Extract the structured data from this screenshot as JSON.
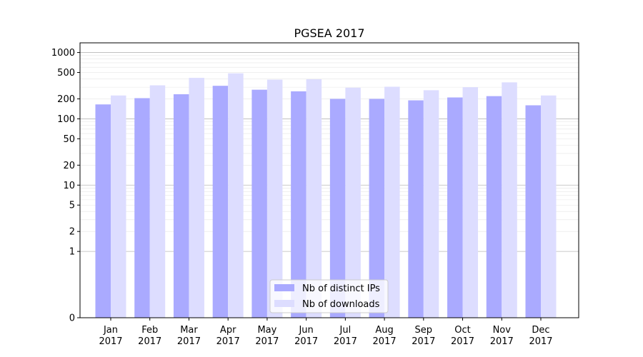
{
  "chart_data": {
    "type": "bar",
    "title": "PGSEA 2017",
    "xlabel": "",
    "ylabel": "",
    "yscale": "symlog",
    "ylim": [
      0,
      1400
    ],
    "yticks": [
      0,
      1,
      2,
      5,
      10,
      20,
      50,
      100,
      200,
      500,
      1000
    ],
    "ytick_labels": [
      "0",
      "1",
      "2",
      "5",
      "10",
      "20",
      "50",
      "100",
      "200",
      "500",
      "1000"
    ],
    "categories": [
      "Jan\n2017",
      "Feb\n2017",
      "Mar\n2017",
      "Apr\n2017",
      "May\n2017",
      "Jun\n2017",
      "Jul\n2017",
      "Aug\n2017",
      "Sep\n2017",
      "Oct\n2017",
      "Nov\n2017",
      "Dec\n2017"
    ],
    "category_lines": [
      [
        "Jan",
        "2017"
      ],
      [
        "Feb",
        "2017"
      ],
      [
        "Mar",
        "2017"
      ],
      [
        "Apr",
        "2017"
      ],
      [
        "May",
        "2017"
      ],
      [
        "Jun",
        "2017"
      ],
      [
        "Jul",
        "2017"
      ],
      [
        "Aug",
        "2017"
      ],
      [
        "Sep",
        "2017"
      ],
      [
        "Oct",
        "2017"
      ],
      [
        "Nov",
        "2017"
      ],
      [
        "Dec",
        "2017"
      ]
    ],
    "series": [
      {
        "name": "Nb of distinct IPs",
        "color": "#aaaaff",
        "values": [
          165,
          205,
          235,
          315,
          275,
          260,
          200,
          200,
          190,
          210,
          220,
          160
        ]
      },
      {
        "name": "Nb of downloads",
        "color": "#ddddff",
        "values": [
          225,
          320,
          415,
          485,
          390,
          395,
          295,
          305,
          270,
          300,
          355,
          225
        ]
      }
    ],
    "grid": true,
    "legend_position": "bottom-center"
  }
}
